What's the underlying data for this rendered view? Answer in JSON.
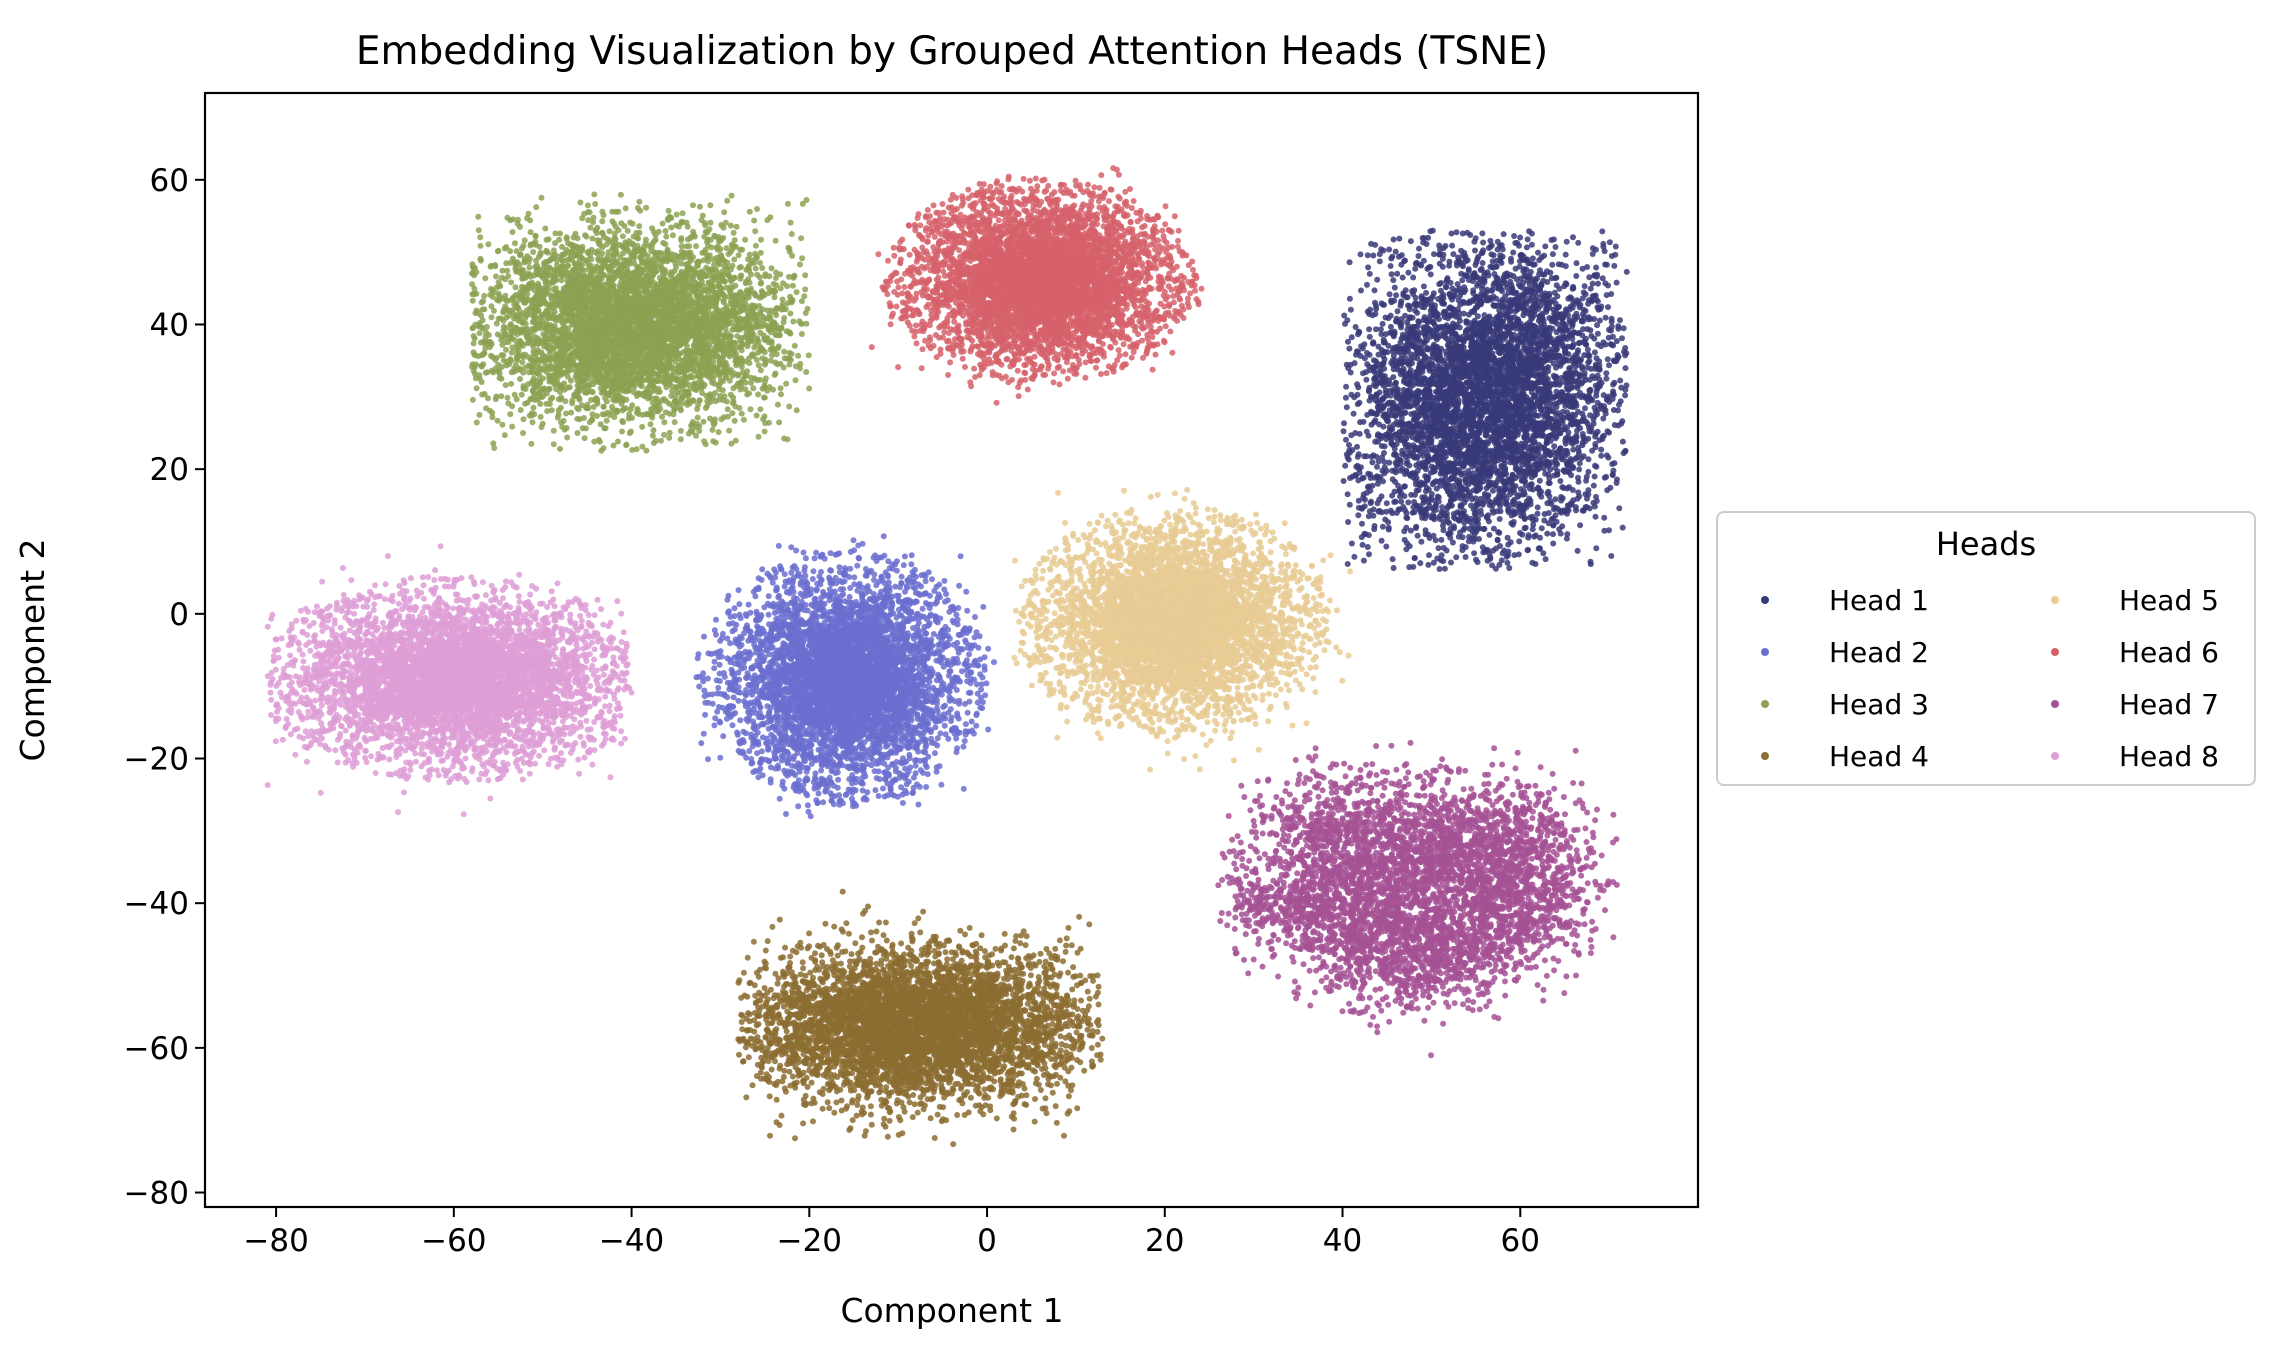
{
  "chart_data": {
    "type": "scatter",
    "title": "Embedding Visualization by Grouped Attention Heads (TSNE)",
    "xlabel": "Component 1",
    "ylabel": "Component 2",
    "xlim": [
      -88,
      80
    ],
    "ylim": [
      -82,
      72
    ],
    "xticks": [
      -80,
      -60,
      -40,
      -20,
      0,
      20,
      40,
      60
    ],
    "yticks": [
      -80,
      -60,
      -40,
      -20,
      0,
      20,
      40,
      60
    ],
    "grid": false,
    "legend": {
      "title": "Heads",
      "placement": "outside-right-center",
      "columns": 2
    },
    "series": [
      {
        "name": "Head 1",
        "color": "#383a78",
        "shape": "tilted-blob",
        "center": [
          56,
          30
        ],
        "spread": [
          9,
          14
        ],
        "x_range": [
          40,
          72
        ],
        "y_range": [
          6,
          53
        ],
        "points": 5000
      },
      {
        "name": "Head 2",
        "color": "#6b6ecf",
        "shape": "ellipse",
        "center": [
          -16,
          -9
        ],
        "spread": [
          10,
          11
        ],
        "x_range": [
          -33,
          1
        ],
        "y_range": [
          -29,
          11
        ],
        "points": 5000
      },
      {
        "name": "Head 3",
        "color": "#8ca252",
        "shape": "blob",
        "center": [
          -40,
          40
        ],
        "spread": [
          12,
          9
        ],
        "x_range": [
          -58,
          -20
        ],
        "y_range": [
          22,
          58
        ],
        "points": 5000
      },
      {
        "name": "Head 4",
        "color": "#8c6d31",
        "shape": "blob",
        "center": [
          -8,
          -57
        ],
        "spread": [
          13,
          7
        ],
        "x_range": [
          -28,
          13
        ],
        "y_range": [
          -74,
          -37
        ],
        "points": 5000
      },
      {
        "name": "Head 5",
        "color": "#e7cb94",
        "shape": "ellipse",
        "center": [
          21,
          -1
        ],
        "spread": [
          11,
          10
        ],
        "x_range": [
          3,
          41
        ],
        "y_range": [
          -22,
          19
        ],
        "points": 5000
      },
      {
        "name": "Head 6",
        "color": "#d6616b",
        "shape": "ellipse",
        "center": [
          6,
          46
        ],
        "spread": [
          11,
          9
        ],
        "x_range": [
          -13,
          25
        ],
        "y_range": [
          29,
          65
        ],
        "points": 5000
      },
      {
        "name": "Head 7",
        "color": "#a55194",
        "shape": "patchy",
        "center": [
          50,
          -37
        ],
        "spread": [
          14,
          11
        ],
        "x_range": [
          26,
          71
        ],
        "y_range": [
          -62,
          -16
        ],
        "points": 4500
      },
      {
        "name": "Head 8",
        "color": "#de9ed6",
        "shape": "ellipse",
        "center": [
          -60,
          -9
        ],
        "spread": [
          14,
          9
        ],
        "x_range": [
          -81,
          -40
        ],
        "y_range": [
          -29,
          12
        ],
        "points": 5000
      }
    ]
  }
}
